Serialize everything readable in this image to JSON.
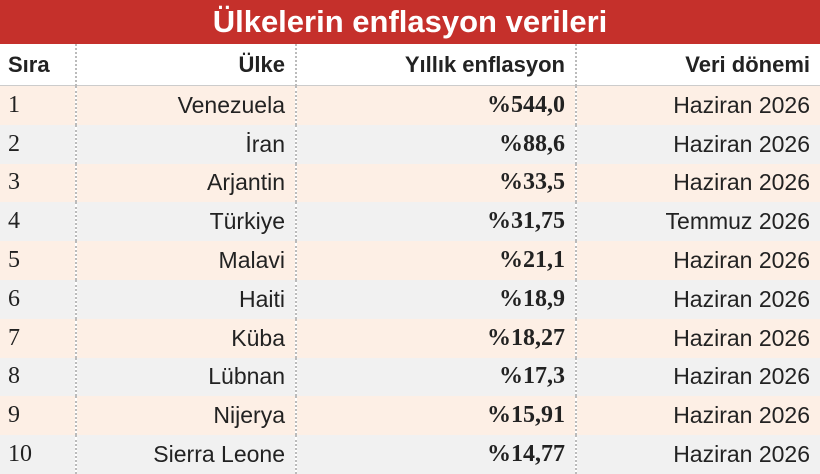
{
  "header": {
    "title": "Ülkelerin enflasyon verileri"
  },
  "table": {
    "columns": [
      "Sıra",
      "Ülke",
      "Yıllık enflasyon",
      "Veri dönemi"
    ],
    "rows": [
      [
        "1",
        "Venezuela",
        "%544,0",
        "Haziran 2026"
      ],
      [
        "2",
        "İran",
        "%88,6",
        "Haziran 2026"
      ],
      [
        "3",
        "Arjantin",
        "%33,5",
        "Haziran 2026"
      ],
      [
        "4",
        "Türkiye",
        "%31,75",
        "Temmuz 2026"
      ],
      [
        "5",
        "Malavi",
        "%21,1",
        "Haziran 2026"
      ],
      [
        "6",
        "Haiti",
        "%18,9",
        "Haziran 2026"
      ],
      [
        "7",
        "Küba",
        "%18,27",
        "Haziran 2026"
      ],
      [
        "8",
        "Lübnan",
        "%17,3",
        "Haziran 2026"
      ],
      [
        "9",
        "Nijerya",
        "%15,91",
        "Haziran 2026"
      ],
      [
        "10",
        "Sierra Leone",
        "%14,77",
        "Haziran 2026"
      ]
    ]
  }
}
